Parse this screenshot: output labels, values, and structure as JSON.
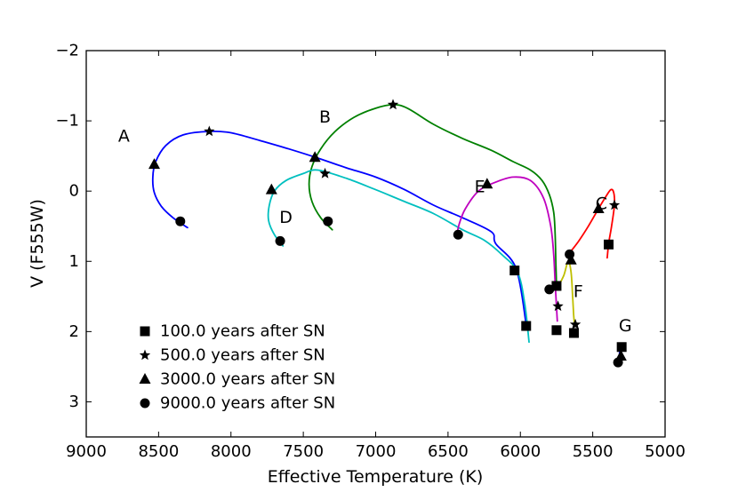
{
  "chart_data": {
    "type": "line",
    "title": "",
    "xlabel": "Effective Temperature (K)",
    "ylabel": "V (F555W)",
    "xlim": [
      9000,
      5000
    ],
    "ylim": [
      3.5,
      -2
    ],
    "x_ticks": [
      {
        "value": 9000,
        "label": "9000"
      },
      {
        "value": 8500,
        "label": "8500"
      },
      {
        "value": 8000,
        "label": "8000"
      },
      {
        "value": 7500,
        "label": "7500"
      },
      {
        "value": 7000,
        "label": "7000"
      },
      {
        "value": 6500,
        "label": "6500"
      },
      {
        "value": 6000,
        "label": "6000"
      },
      {
        "value": 5500,
        "label": "5500"
      },
      {
        "value": 5000,
        "label": "5000"
      }
    ],
    "y_ticks": [
      {
        "value": -2,
        "label": "−2"
      },
      {
        "value": -1,
        "label": "−1"
      },
      {
        "value": 0,
        "label": "0"
      },
      {
        "value": 1,
        "label": "1"
      },
      {
        "value": 2,
        "label": "2"
      },
      {
        "value": 3,
        "label": "3"
      }
    ],
    "series": [
      {
        "name": "A",
        "color": "#0000ff",
        "label_pos": {
          "x": 8740,
          "y": -0.78
        },
        "points": [
          [
            8300,
            0.52
          ],
          [
            8400,
            0.38
          ],
          [
            8480,
            0.22
          ],
          [
            8530,
            0.02
          ],
          [
            8540,
            -0.2
          ],
          [
            8520,
            -0.42
          ],
          [
            8450,
            -0.65
          ],
          [
            8330,
            -0.8
          ],
          [
            8150,
            -0.85
          ],
          [
            8000,
            -0.83
          ],
          [
            7800,
            -0.72
          ],
          [
            7600,
            -0.6
          ],
          [
            7400,
            -0.47
          ],
          [
            7200,
            -0.33
          ],
          [
            7000,
            -0.2
          ],
          [
            6800,
            -0.02
          ],
          [
            6600,
            0.2
          ],
          [
            6400,
            0.38
          ],
          [
            6200,
            0.58
          ],
          [
            6170,
            0.75
          ],
          [
            6030,
            1.1
          ],
          [
            5960,
            1.9
          ]
        ]
      },
      {
        "name": "B",
        "color": "#008000",
        "label_pos": {
          "x": 7350,
          "y": -1.05
        },
        "points": [
          [
            7300,
            0.55
          ],
          [
            7380,
            0.38
          ],
          [
            7440,
            0.15
          ],
          [
            7460,
            -0.1
          ],
          [
            7440,
            -0.35
          ],
          [
            7380,
            -0.6
          ],
          [
            7280,
            -0.85
          ],
          [
            7150,
            -1.05
          ],
          [
            7000,
            -1.18
          ],
          [
            6880,
            -1.23
          ],
          [
            6780,
            -1.18
          ],
          [
            6600,
            -0.95
          ],
          [
            6400,
            -0.75
          ],
          [
            6200,
            -0.58
          ],
          [
            6050,
            -0.42
          ],
          [
            5930,
            -0.3
          ],
          [
            5850,
            -0.15
          ],
          [
            5800,
            0.05
          ],
          [
            5770,
            0.3
          ],
          [
            5760,
            0.6
          ],
          [
            5755,
            1.0
          ],
          [
            5750,
            1.36
          ]
        ]
      },
      {
        "name": "C",
        "color": "#ff0000",
        "label_pos": {
          "x": 5440,
          "y": 0.18
        },
        "points": [
          [
            5660,
            0.88
          ],
          [
            5600,
            0.72
          ],
          [
            5530,
            0.5
          ],
          [
            5460,
            0.25
          ],
          [
            5410,
            0.08
          ],
          [
            5375,
            -0.02
          ],
          [
            5355,
            0.02
          ],
          [
            5350,
            0.2
          ],
          [
            5370,
            0.5
          ],
          [
            5390,
            0.75
          ],
          [
            5400,
            0.95
          ]
        ]
      },
      {
        "name": "D",
        "color": "#00bfbf",
        "label_pos": {
          "x": 7620,
          "y": 0.38
        },
        "points": [
          [
            7640,
            0.78
          ],
          [
            7700,
            0.62
          ],
          [
            7740,
            0.42
          ],
          [
            7735,
            0.2
          ],
          [
            7700,
            0.0
          ],
          [
            7620,
            -0.15
          ],
          [
            7500,
            -0.25
          ],
          [
            7400,
            -0.3
          ],
          [
            7200,
            -0.18
          ],
          [
            7000,
            -0.02
          ],
          [
            6800,
            0.15
          ],
          [
            6600,
            0.32
          ],
          [
            6400,
            0.55
          ],
          [
            6250,
            0.7
          ],
          [
            6130,
            0.9
          ],
          [
            6020,
            1.15
          ],
          [
            5970,
            1.6
          ],
          [
            5940,
            2.15
          ]
        ]
      },
      {
        "name": "E",
        "color": "#bf00bf",
        "label_pos": {
          "x": 6280,
          "y": -0.06
        },
        "points": [
          [
            6440,
            0.62
          ],
          [
            6420,
            0.45
          ],
          [
            6380,
            0.25
          ],
          [
            6290,
            0.0
          ],
          [
            6180,
            -0.12
          ],
          [
            6050,
            -0.2
          ],
          [
            5930,
            -0.15
          ],
          [
            5840,
            0.1
          ],
          [
            5790,
            0.5
          ],
          [
            5770,
            0.9
          ],
          [
            5760,
            1.3
          ],
          [
            5750,
            1.65
          ],
          [
            5745,
            1.85
          ]
        ]
      },
      {
        "name": "F",
        "color": "#bfbf00",
        "label_pos": {
          "x": 5600,
          "y": 1.43
        },
        "points": [
          [
            5750,
            1.4
          ],
          [
            5700,
            1.2
          ],
          [
            5670,
            1.0
          ],
          [
            5650,
            1.15
          ],
          [
            5640,
            1.45
          ],
          [
            5632,
            1.75
          ],
          [
            5625,
            1.92
          ]
        ]
      },
      {
        "name": "G",
        "color": "#0000ff",
        "label_pos": {
          "x": 5275,
          "y": 1.92
        },
        "points": [
          [
            5310,
            2.2
          ],
          [
            5315,
            2.32
          ],
          [
            5320,
            2.45
          ]
        ]
      }
    ],
    "markers": [
      {
        "track": "A",
        "epoch": 100,
        "x": 6040,
        "y": 1.13
      },
      {
        "track": "A",
        "epoch": 500,
        "x": 8150,
        "y": -0.85
      },
      {
        "track": "A",
        "epoch": 3000,
        "x": 8530,
        "y": -0.38
      },
      {
        "track": "A",
        "epoch": 9000,
        "x": 8350,
        "y": 0.43
      },
      {
        "track": "A",
        "epoch": 100,
        "x": 5960,
        "y": 1.92
      },
      {
        "track": "B",
        "epoch": 500,
        "x": 6880,
        "y": -1.23
      },
      {
        "track": "B",
        "epoch": 3000,
        "x": 7420,
        "y": -0.48
      },
      {
        "track": "B",
        "epoch": 9000,
        "x": 7330,
        "y": 0.43
      },
      {
        "track": "B",
        "epoch": 100,
        "x": 5750,
        "y": 1.35
      },
      {
        "track": "D",
        "epoch": 500,
        "x": 7350,
        "y": -0.25
      },
      {
        "track": "D",
        "epoch": 3000,
        "x": 7720,
        "y": -0.02
      },
      {
        "track": "D",
        "epoch": 9000,
        "x": 7660,
        "y": 0.71
      },
      {
        "track": "E",
        "epoch": 3000,
        "x": 6230,
        "y": -0.1
      },
      {
        "track": "E",
        "epoch": 9000,
        "x": 6430,
        "y": 0.62
      },
      {
        "track": "E",
        "epoch": 500,
        "x": 5740,
        "y": 1.64
      },
      {
        "track": "E",
        "epoch": 100,
        "x": 5750,
        "y": 1.98
      },
      {
        "track": "F",
        "epoch": 9000,
        "x": 5800,
        "y": 1.4
      },
      {
        "track": "F",
        "epoch": 9000,
        "x": 5660,
        "y": 0.9
      },
      {
        "track": "F",
        "epoch": 3000,
        "x": 5650,
        "y": 0.98
      },
      {
        "track": "F",
        "epoch": 500,
        "x": 5620,
        "y": 1.9
      },
      {
        "track": "F",
        "epoch": 100,
        "x": 5630,
        "y": 2.02
      },
      {
        "track": "C",
        "epoch": 3000,
        "x": 5460,
        "y": 0.25
      },
      {
        "track": "C",
        "epoch": 500,
        "x": 5350,
        "y": 0.2
      },
      {
        "track": "C",
        "epoch": 100,
        "x": 5390,
        "y": 0.76
      },
      {
        "track": "G",
        "epoch": 100,
        "x": 5300,
        "y": 2.22
      },
      {
        "track": "G",
        "epoch": 3000,
        "x": 5305,
        "y": 2.35
      },
      {
        "track": "G",
        "epoch": 9000,
        "x": 5325,
        "y": 2.44
      }
    ],
    "legend": {
      "position": "lower-left",
      "entries": [
        {
          "marker": "square",
          "label": "100.0 years after SN"
        },
        {
          "marker": "star",
          "label": "500.0 years after SN"
        },
        {
          "marker": "triangle",
          "label": "3000.0 years after SN"
        },
        {
          "marker": "circle",
          "label": "9000.0 years after SN"
        }
      ]
    }
  }
}
